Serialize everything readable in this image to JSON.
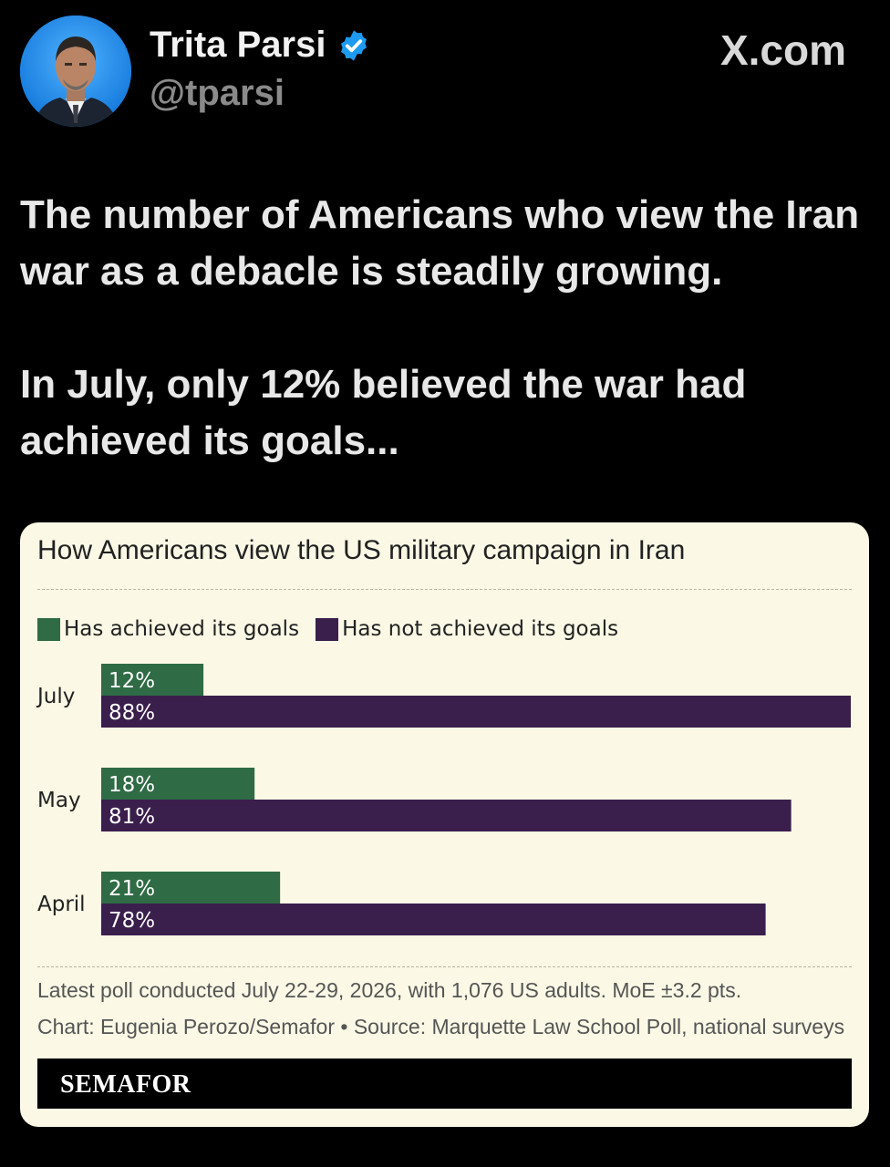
{
  "header": {
    "display_name": "Trita Parsi",
    "handle": "@tparsi",
    "verified_icon": "verified-badge-icon",
    "brand": "X.com"
  },
  "tweet": {
    "line1": "The number of Americans who view the Iran war as a debacle is steadily growing.",
    "line2": "In July, only 12% believed the war had achieved its goals..."
  },
  "chart_data": {
    "type": "bar",
    "title": "How Americans view the US military campaign in Iran",
    "categories": [
      "July",
      "May",
      "April"
    ],
    "series": [
      {
        "name": "Has achieved its goals",
        "color": "#2f6b45",
        "values": [
          12,
          18,
          21
        ],
        "labels": [
          "12%",
          "18%",
          "21%"
        ]
      },
      {
        "name": "Has not achieved its goals",
        "color": "#3a1e4c",
        "values": [
          88,
          81,
          78
        ],
        "labels": [
          "88%",
          "81%",
          "78%"
        ]
      }
    ],
    "xlim": [
      0,
      88
    ],
    "grid": false,
    "legend_position": "top-left",
    "orientation": "horizontal"
  },
  "footer": {
    "note": "Latest poll conducted July 22-29, 2026, with 1,076 US adults. MoE ±3.2 pts.",
    "credit": "Chart: Eugenia Perozo/Semafor • Source: Marquette Law School Poll, national surveys",
    "logo": "SEMAFOR"
  }
}
